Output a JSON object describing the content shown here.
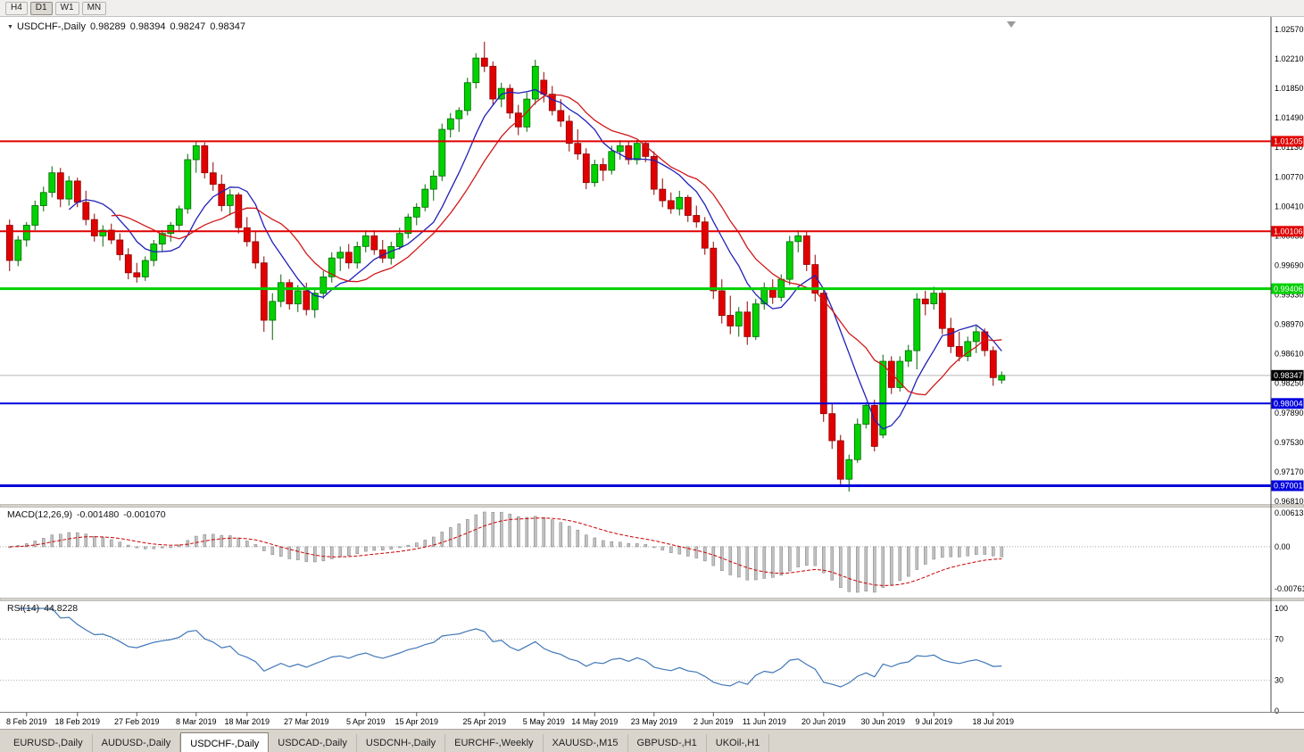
{
  "toolbar": {
    "timeframes": [
      {
        "label": "H4",
        "active": false
      },
      {
        "label": "D1",
        "active": true
      },
      {
        "label": "W1",
        "active": false
      },
      {
        "label": "MN",
        "active": false
      }
    ]
  },
  "header": {
    "dropdown_icon": "▼",
    "symbol": "USDCHF-,Daily",
    "open": "0.98289",
    "high": "0.98394",
    "low": "0.98247",
    "close": "0.98347"
  },
  "macd_panel": {
    "name": "MACD(12,26,9)",
    "main_value": "-0.001480",
    "signal_value": "-0.001070"
  },
  "rsi_panel": {
    "name": "RSI(14)",
    "value": "44.8228"
  },
  "tabs": {
    "items": [
      "EURUSD-,Daily",
      "AUDUSD-,Daily",
      "USDCHF-,Daily",
      "USDCAD-,Daily",
      "USDCNH-,Daily",
      "EURCHF-,Weekly",
      "XAUUSD-,M15",
      "GBPUSD-,H1",
      "UKOil-,H1"
    ],
    "active_index": 2
  },
  "chart_data": {
    "type": "candlestick",
    "symbol": "USDCHF",
    "timeframe": "Daily",
    "up_color": "#00d200",
    "up_stroke": "#006600",
    "down_color": "#e10000",
    "down_stroke": "#8e0000",
    "candles": [
      [
        1.0018,
        1.0025,
        0.9962,
        0.9975
      ],
      [
        0.9975,
        1.0005,
        0.9968,
        1.0
      ],
      [
        1.0,
        1.0022,
        0.9992,
        1.0018
      ],
      [
        1.0018,
        1.0048,
        1.0012,
        1.0042
      ],
      [
        1.0042,
        1.0065,
        1.0035,
        1.0058
      ],
      [
        1.0058,
        1.009,
        1.0052,
        1.0082
      ],
      [
        1.0082,
        1.0088,
        1.004,
        1.005
      ],
      [
        1.005,
        1.0078,
        1.0042,
        1.0072
      ],
      [
        1.0072,
        1.0076,
        1.004,
        1.0046
      ],
      [
        1.0046,
        1.006,
        1.0018,
        1.0025
      ],
      [
        1.0025,
        1.0032,
        0.9998,
        1.0005
      ],
      [
        1.0005,
        1.0018,
        0.9992,
        1.0012
      ],
      [
        1.0012,
        1.002,
        0.9995,
        1.0
      ],
      [
        1.0,
        1.0008,
        0.9975,
        0.9982
      ],
      [
        0.9982,
        0.999,
        0.9952,
        0.996
      ],
      [
        0.996,
        0.9972,
        0.9948,
        0.9955
      ],
      [
        0.9955,
        0.998,
        0.995,
        0.9975
      ],
      [
        0.9975,
        1.0,
        0.9968,
        0.9995
      ],
      [
        0.9995,
        1.0012,
        0.9985,
        1.0008
      ],
      [
        1.0008,
        1.0022,
        0.9998,
        1.0018
      ],
      [
        1.0018,
        1.0042,
        1.001,
        1.0038
      ],
      [
        1.0038,
        1.0105,
        1.0032,
        1.0098
      ],
      [
        1.0098,
        1.0121,
        1.0082,
        1.0115
      ],
      [
        1.0115,
        1.0119,
        1.0075,
        1.0082
      ],
      [
        1.0082,
        1.0095,
        1.006,
        1.0068
      ],
      [
        1.0068,
        1.008,
        1.0035,
        1.0042
      ],
      [
        1.0042,
        1.0062,
        1.003,
        1.0055
      ],
      [
        1.0055,
        1.0058,
        1.0008,
        1.0015
      ],
      [
        1.0015,
        1.0028,
        0.9992,
        0.9998
      ],
      [
        0.9998,
        1.001,
        0.9965,
        0.9972
      ],
      [
        0.9972,
        0.998,
        0.9888,
        0.9902
      ],
      [
        0.9902,
        0.9935,
        0.9878,
        0.9925
      ],
      [
        0.9925,
        0.9958,
        0.9918,
        0.9948
      ],
      [
        0.9948,
        0.9952,
        0.9915,
        0.9922
      ],
      [
        0.9922,
        0.9945,
        0.9912,
        0.9938
      ],
      [
        0.9938,
        0.9948,
        0.9908,
        0.9915
      ],
      [
        0.9915,
        0.9942,
        0.9905,
        0.9935
      ],
      [
        0.9935,
        0.9962,
        0.9928,
        0.9955
      ],
      [
        0.9955,
        0.9985,
        0.9948,
        0.9978
      ],
      [
        0.9978,
        0.9992,
        0.9962,
        0.9985
      ],
      [
        0.9985,
        0.9995,
        0.9965,
        0.9972
      ],
      [
        0.9972,
        0.9998,
        0.9965,
        0.9992
      ],
      [
        0.9992,
        1.0012,
        0.9985,
        1.0005
      ],
      [
        1.0005,
        1.0012,
        0.9982,
        0.9988
      ],
      [
        0.9988,
        1.0,
        0.9972,
        0.9978
      ],
      [
        0.9978,
        0.9998,
        0.997,
        0.9992
      ],
      [
        0.9992,
        1.0015,
        0.9988,
        1.0008
      ],
      [
        1.0008,
        1.0032,
        1.0002,
        1.0028
      ],
      [
        1.0028,
        1.0045,
        1.0018,
        1.004
      ],
      [
        1.004,
        1.0068,
        1.0035,
        1.0062
      ],
      [
        1.0062,
        1.0085,
        1.0048,
        1.0078
      ],
      [
        1.0078,
        1.0142,
        1.0072,
        1.0135
      ],
      [
        1.0135,
        1.0155,
        1.0125,
        1.0148
      ],
      [
        1.0148,
        1.0162,
        1.0132,
        1.0158
      ],
      [
        1.0158,
        1.0198,
        1.0152,
        1.0192
      ],
      [
        1.0192,
        1.0228,
        1.0185,
        1.0222
      ],
      [
        1.0222,
        1.0242,
        1.0205,
        1.0212
      ],
      [
        1.0212,
        1.0218,
        1.0165,
        1.0172
      ],
      [
        1.0172,
        1.0192,
        1.0162,
        1.0185
      ],
      [
        1.0185,
        1.019,
        1.0148,
        1.0155
      ],
      [
        1.0155,
        1.0165,
        1.0128,
        1.0138
      ],
      [
        1.0138,
        1.018,
        1.0132,
        1.0172
      ],
      [
        1.0172,
        1.022,
        1.0165,
        1.0212
      ],
      [
        1.0195,
        1.0205,
        1.0168,
        1.0178
      ],
      [
        1.0178,
        1.0188,
        1.0152,
        1.0158
      ],
      [
        1.0158,
        1.0172,
        1.0138,
        1.0145
      ],
      [
        1.0145,
        1.0152,
        1.0108,
        1.0118
      ],
      [
        1.0118,
        1.0135,
        1.0098,
        1.0105
      ],
      [
        1.0105,
        1.0112,
        1.0062,
        1.007
      ],
      [
        1.007,
        1.0098,
        1.0065,
        1.0092
      ],
      [
        1.0092,
        1.01,
        1.0072,
        1.0085
      ],
      [
        1.0085,
        1.0115,
        1.008,
        1.0108
      ],
      [
        1.0108,
        1.0122,
        1.0098,
        1.0115
      ],
      [
        1.0115,
        1.012,
        1.0092,
        1.0098
      ],
      [
        1.0098,
        1.0122,
        1.0092,
        1.0118
      ],
      [
        1.0118,
        1.0121,
        1.0095,
        1.0102
      ],
      [
        1.0102,
        1.0108,
        1.0055,
        1.0062
      ],
      [
        1.0062,
        1.0075,
        1.004,
        1.0048
      ],
      [
        1.0048,
        1.0058,
        1.0032,
        1.0038
      ],
      [
        1.0038,
        1.006,
        1.003,
        1.0052
      ],
      [
        1.0052,
        1.0055,
        1.0022,
        1.003
      ],
      [
        1.003,
        1.0042,
        1.0015,
        1.0022
      ],
      [
        1.0022,
        1.0028,
        0.9982,
        0.999
      ],
      [
        0.999,
        0.9998,
        0.9928,
        0.9938
      ],
      [
        0.9938,
        0.9952,
        0.9898,
        0.9908
      ],
      [
        0.9908,
        0.9932,
        0.9885,
        0.9895
      ],
      [
        0.9895,
        0.9918,
        0.9882,
        0.9912
      ],
      [
        0.9912,
        0.9925,
        0.9872,
        0.9882
      ],
      [
        0.9882,
        0.9928,
        0.9878,
        0.9922
      ],
      [
        0.9922,
        0.9948,
        0.9915,
        0.9942
      ],
      [
        0.9942,
        0.9952,
        0.9922,
        0.993
      ],
      [
        0.993,
        0.9958,
        0.9925,
        0.9952
      ],
      [
        0.9952,
        1.0005,
        0.9945,
        0.9998
      ],
      [
        0.9998,
        1.0012,
        0.9985,
        1.0005
      ],
      [
        1.0005,
        1.001,
        0.9962,
        0.997
      ],
      [
        0.997,
        0.9982,
        0.9925,
        0.9935
      ],
      [
        0.9935,
        0.994,
        0.9778,
        0.9788
      ],
      [
        0.9788,
        0.98,
        0.9745,
        0.9755
      ],
      [
        0.9755,
        0.9762,
        0.97,
        0.9708
      ],
      [
        0.9708,
        0.9738,
        0.9693,
        0.9732
      ],
      [
        0.9732,
        0.9782,
        0.9728,
        0.9775
      ],
      [
        0.9775,
        0.9802,
        0.977,
        0.9798
      ],
      [
        0.9798,
        0.9805,
        0.9742,
        0.9748
      ],
      [
        0.9762,
        0.986,
        0.9758,
        0.9852
      ],
      [
        0.9852,
        0.9858,
        0.9812,
        0.982
      ],
      [
        0.982,
        0.9858,
        0.9815,
        0.9852
      ],
      [
        0.9852,
        0.9872,
        0.9845,
        0.9865
      ],
      [
        0.9865,
        0.9935,
        0.9842,
        0.9928
      ],
      [
        0.9928,
        0.9938,
        0.9908,
        0.9922
      ],
      [
        0.9922,
        0.9943,
        0.9915,
        0.9935
      ],
      [
        0.9935,
        0.994,
        0.9885,
        0.9892
      ],
      [
        0.9892,
        0.9905,
        0.9862,
        0.987
      ],
      [
        0.987,
        0.9888,
        0.9852,
        0.9858
      ],
      [
        0.9858,
        0.9882,
        0.9852,
        0.9876
      ],
      [
        0.9876,
        0.9895,
        0.9862,
        0.9888
      ],
      [
        0.9888,
        0.9892,
        0.9858,
        0.9865
      ],
      [
        0.9865,
        0.987,
        0.9822,
        0.9832
      ],
      [
        0.98289,
        0.98394,
        0.98247,
        0.98347
      ]
    ],
    "moving_averages": [
      {
        "name": "ma-fast",
        "period": 8,
        "color": "#2020b8"
      },
      {
        "name": "ma-slow",
        "period": 13,
        "color": "#d01818"
      }
    ],
    "levels": [
      {
        "label": "1.01205",
        "price": 1.01205,
        "color": "#e00000",
        "width": 2
      },
      {
        "label": "1.00106",
        "price": 1.00106,
        "color": "#e00000",
        "width": 2
      },
      {
        "label": "0.99406",
        "price": 0.99406,
        "color": "#00d000",
        "width": 3
      },
      {
        "label": "0.98004",
        "price": 0.98004,
        "color": "#0000dd",
        "width": 2
      },
      {
        "label": "0.97001",
        "price": 0.97001,
        "color": "#0000dd",
        "width": 3
      }
    ],
    "current_price": {
      "label": "0.98347",
      "price": 0.98347,
      "badge_color": "#000000",
      "line_color": "#b8b8b8"
    },
    "y_axis": {
      "ticks": [
        "1.02570",
        "1.02210",
        "1.01850",
        "1.01490",
        "1.01130",
        "1.00770",
        "1.00410",
        "1.00050",
        "0.99690",
        "0.99330",
        "0.98970",
        "0.98610",
        "0.98250",
        "0.97890",
        "0.97530",
        "0.97170",
        "0.96810"
      ]
    },
    "x_axis": {
      "labels": [
        {
          "text": "8 Feb 2019",
          "index": 2
        },
        {
          "text": "18 Feb 2019",
          "index": 8
        },
        {
          "text": "27 Feb 2019",
          "index": 15
        },
        {
          "text": "8 Mar 2019",
          "index": 22
        },
        {
          "text": "18 Mar 2019",
          "index": 28
        },
        {
          "text": "27 Mar 2019",
          "index": 35
        },
        {
          "text": "5 Apr 2019",
          "index": 42
        },
        {
          "text": "15 Apr 2019",
          "index": 48
        },
        {
          "text": "25 Apr 2019",
          "index": 56
        },
        {
          "text": "5 May 2019",
          "index": 63
        },
        {
          "text": "14 May 2019",
          "index": 69
        },
        {
          "text": "23 May 2019",
          "index": 76
        },
        {
          "text": "2 Jun 2019",
          "index": 83
        },
        {
          "text": "11 Jun 2019",
          "index": 89
        },
        {
          "text": "20 Jun 2019",
          "index": 96
        },
        {
          "text": "30 Jun 2019",
          "index": 103
        },
        {
          "text": "9 Jul 2019",
          "index": 109
        },
        {
          "text": "18 Jul 2019",
          "index": 116
        }
      ]
    },
    "macd": {
      "fast": 12,
      "slow": 26,
      "signal": 9,
      "axis_labels": [
        "0.00613",
        "0.00",
        "-0.00761"
      ],
      "histogram_color": "#c2c2c2",
      "histogram_stroke": "#8e8e8e",
      "signal_color": "#cc0000"
    },
    "rsi": {
      "period": 14,
      "color": "#4077b8",
      "levels": [
        70,
        30
      ],
      "axis_labels": [
        "100",
        "70",
        "30",
        "0"
      ]
    }
  }
}
